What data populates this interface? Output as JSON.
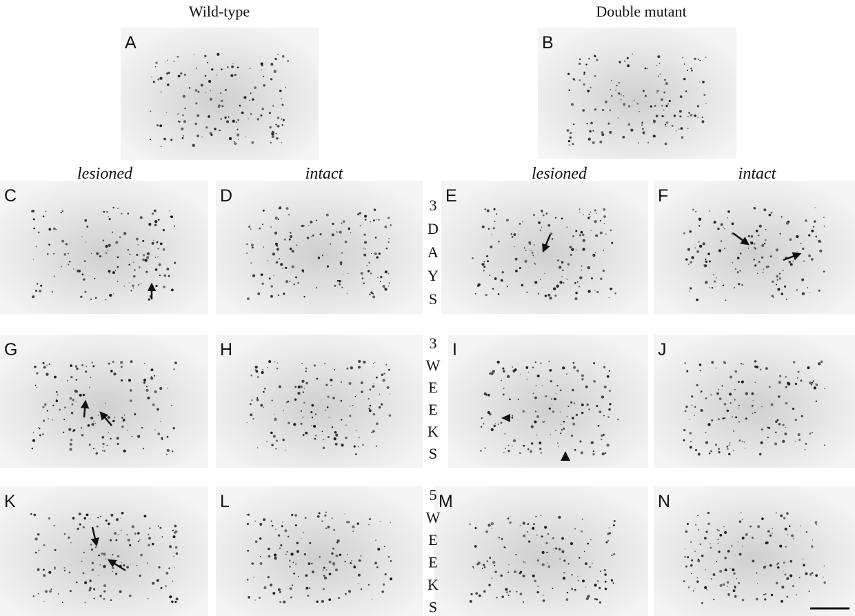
{
  "header": {
    "left_title": "Wild-type",
    "right_title": "Double mutant"
  },
  "column_labels": [
    "lesioned",
    "intact",
    "lesioned",
    "intact"
  ],
  "row_labels": [
    [
      "3",
      "D",
      "A",
      "Y",
      "S"
    ],
    [
      "3",
      "W",
      "E",
      "E",
      "K",
      "S"
    ],
    [
      "5",
      "W",
      "E",
      "E",
      "K",
      "S"
    ]
  ],
  "panels": [
    "A",
    "B",
    "C",
    "D",
    "E",
    "F",
    "G",
    "H",
    "I",
    "J",
    "K",
    "L",
    "M",
    "N"
  ]
}
